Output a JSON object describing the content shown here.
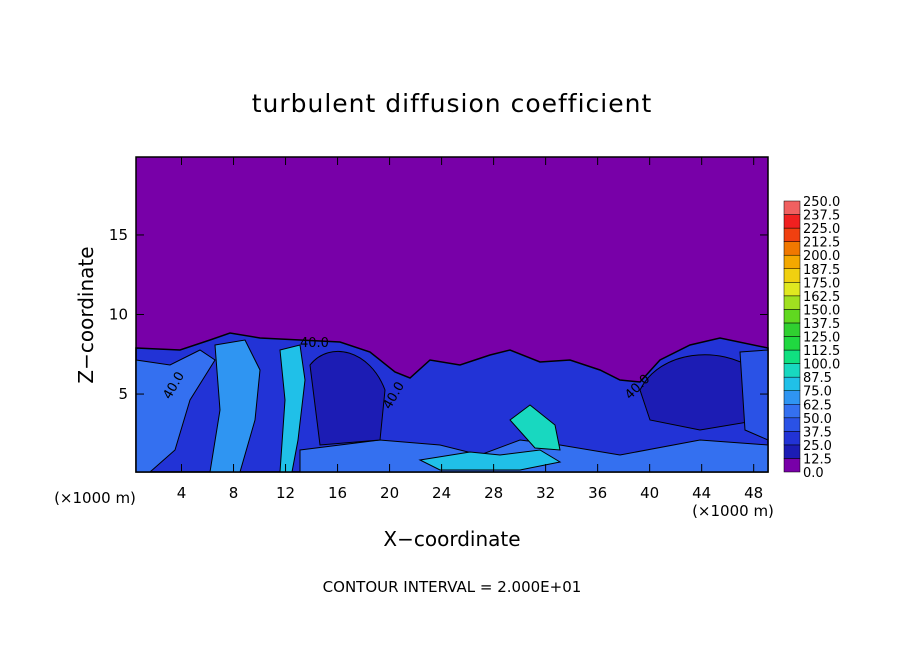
{
  "chart_data": {
    "type": "contour",
    "title": "turbulent diffusion coefficient",
    "x_label": "X−coordinate",
    "y_label": "Z−coordinate",
    "x_unit_label": "(×1000 m)",
    "footer": "CONTOUR INTERVAL = 2.000E+01",
    "contour_labels": [
      "40.0",
      "40.0",
      "40.0",
      "40.0"
    ],
    "xlim": [
      0.5,
      49.1
    ],
    "ylim": [
      0.1,
      19.9
    ],
    "xticks": [
      4,
      8,
      12,
      16,
      20,
      24,
      28,
      32,
      36,
      40,
      44,
      48
    ],
    "yticks": [
      5,
      10,
      15
    ],
    "colorbar": {
      "levels": [
        {
          "value": 0,
          "label": "0.0"
        },
        {
          "value": 12.5,
          "label": "12.5"
        },
        {
          "value": 25,
          "label": "25.0"
        },
        {
          "value": 37.5,
          "label": "37.5"
        },
        {
          "value": 50,
          "label": "50.0"
        },
        {
          "value": 62.5,
          "label": "62.5"
        },
        {
          "value": 75,
          "label": "75.0"
        },
        {
          "value": 87.5,
          "label": "87.5"
        },
        {
          "value": 100,
          "label": "100.0"
        },
        {
          "value": 112.5,
          "label": "112.5"
        },
        {
          "value": 125,
          "label": "125.0"
        },
        {
          "value": 137.5,
          "label": "137.5"
        },
        {
          "value": 150,
          "label": "150.0"
        },
        {
          "value": 162.5,
          "label": "162.5"
        },
        {
          "value": 175,
          "label": "175.0"
        },
        {
          "value": 187.5,
          "label": "187.5"
        },
        {
          "value": 200,
          "label": "200.0"
        },
        {
          "value": 212.5,
          "label": "212.5"
        },
        {
          "value": 225,
          "label": "225.0"
        },
        {
          "value": 237.5,
          "label": "237.5"
        },
        {
          "value": 250,
          "label": "250.0"
        }
      ],
      "colors": [
        "#7800a8",
        "#1c1cb4",
        "#2233d6",
        "#2a52e6",
        "#3470f0",
        "#2f95f2",
        "#20c0e8",
        "#18d8c0",
        "#10e080",
        "#20d840",
        "#30d030",
        "#60d820",
        "#a0e020",
        "#e0e820",
        "#f0d010",
        "#f4a800",
        "#f07800",
        "#f04010",
        "#f02020",
        "#f06060"
      ]
    }
  }
}
